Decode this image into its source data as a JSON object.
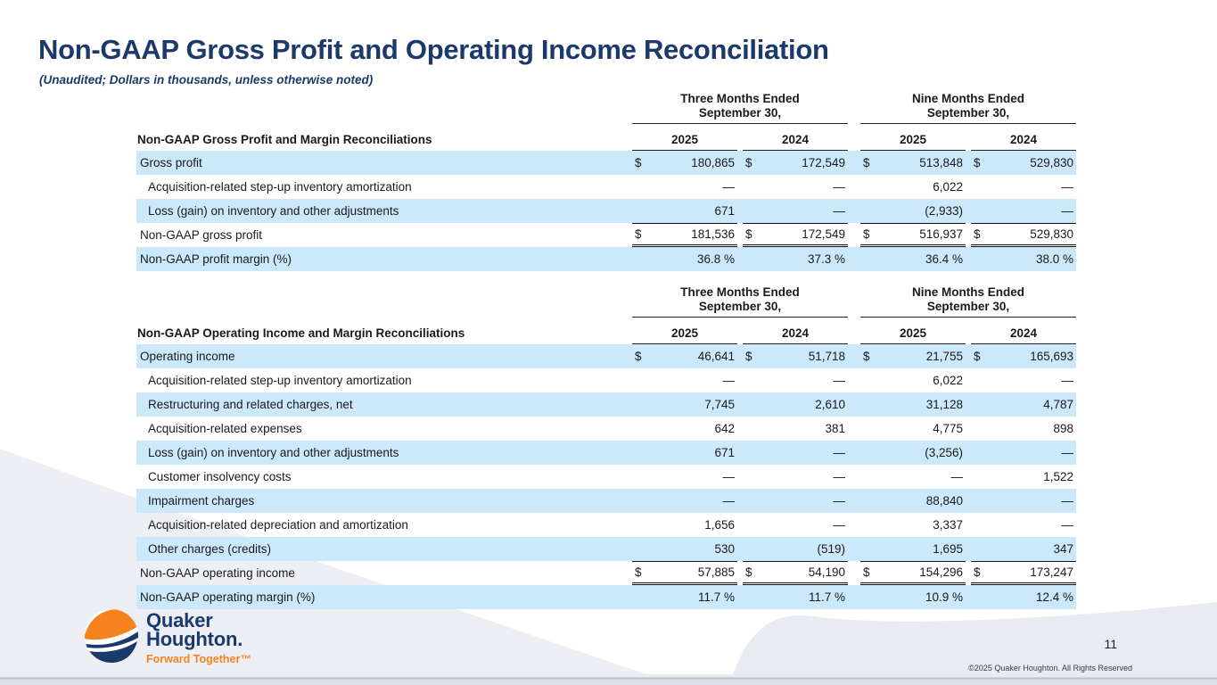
{
  "slide": {
    "title": "Non-GAAP Gross Profit and Operating Income Reconciliation",
    "subtitle": "(Unaudited; Dollars in thousands, unless otherwise noted)",
    "page_number": "11",
    "copyright": "©2025 Quaker Houghton. All Rights Reserved"
  },
  "logo": {
    "line1": "Quaker",
    "line2": "Houghton.",
    "tagline": "Forward Together™"
  },
  "colors": {
    "accent_navy": "#1b3a6b",
    "row_highlight": "#cce9fb",
    "logo_orange": "#f5821f",
    "logo_navy": "#1b3a6b",
    "wave_gray": "#e9ecf2"
  },
  "tables": [
    {
      "section_label": "Non-GAAP Gross Profit and Margin Reconciliations",
      "period_groups": [
        {
          "line1": "Three Months Ended",
          "line2": "September 30,"
        },
        {
          "line1": "Nine Months Ended",
          "line2": "September 30,"
        }
      ],
      "year_columns": [
        "2025",
        "2024",
        "2025",
        "2024"
      ],
      "rows": [
        {
          "label": "Gross profit",
          "indent": false,
          "shaded": true,
          "dollar": true,
          "style": "normal",
          "values": [
            "180,865",
            "172,549",
            "513,848",
            "529,830"
          ]
        },
        {
          "label": "Acquisition-related step-up inventory amortization",
          "indent": true,
          "shaded": false,
          "dollar": false,
          "style": "normal",
          "values": [
            "—",
            "—",
            "6,022",
            "—"
          ]
        },
        {
          "label": "Loss (gain) on inventory and other adjustments",
          "indent": true,
          "shaded": true,
          "dollar": false,
          "style": "normal",
          "values": [
            "671",
            "—",
            "(2,933)",
            "—"
          ]
        },
        {
          "label": "Non-GAAP gross profit",
          "indent": false,
          "shaded": false,
          "dollar": true,
          "style": "total",
          "values": [
            "181,536",
            "172,549",
            "516,937",
            "529,830"
          ]
        },
        {
          "label": "Non-GAAP profit margin (%)",
          "indent": false,
          "shaded": true,
          "dollar": false,
          "style": "percent",
          "values": [
            "36.8 %",
            "37.3 %",
            "36.4 %",
            "38.0 %"
          ]
        }
      ]
    },
    {
      "section_label": "Non-GAAP Operating Income and Margin Reconciliations",
      "period_groups": [
        {
          "line1": "Three Months Ended",
          "line2": "September 30,"
        },
        {
          "line1": "Nine Months Ended",
          "line2": "September 30,"
        }
      ],
      "year_columns": [
        "2025",
        "2024",
        "2025",
        "2024"
      ],
      "rows": [
        {
          "label": "Operating income",
          "indent": false,
          "shaded": true,
          "dollar": true,
          "style": "normal",
          "values": [
            "46,641",
            "51,718",
            "21,755",
            "165,693"
          ]
        },
        {
          "label": "Acquisition-related step-up inventory amortization",
          "indent": true,
          "shaded": false,
          "dollar": false,
          "style": "normal",
          "values": [
            "—",
            "—",
            "6,022",
            "—"
          ]
        },
        {
          "label": "Restructuring and related charges, net",
          "indent": true,
          "shaded": true,
          "dollar": false,
          "style": "normal",
          "values": [
            "7,745",
            "2,610",
            "31,128",
            "4,787"
          ]
        },
        {
          "label": "Acquisition-related expenses",
          "indent": true,
          "shaded": false,
          "dollar": false,
          "style": "normal",
          "values": [
            "642",
            "381",
            "4,775",
            "898"
          ]
        },
        {
          "label": "Loss (gain) on inventory and other adjustments",
          "indent": true,
          "shaded": true,
          "dollar": false,
          "style": "normal",
          "values": [
            "671",
            "—",
            "(3,256)",
            "—"
          ]
        },
        {
          "label": "Customer insolvency costs",
          "indent": true,
          "shaded": false,
          "dollar": false,
          "style": "normal",
          "values": [
            "—",
            "—",
            "—",
            "1,522"
          ]
        },
        {
          "label": "Impairment charges",
          "indent": true,
          "shaded": true,
          "dollar": false,
          "style": "normal",
          "values": [
            "—",
            "—",
            "88,840",
            "—"
          ]
        },
        {
          "label": "Acquisition-related depreciation and amortization",
          "indent": true,
          "shaded": false,
          "dollar": false,
          "style": "normal",
          "values": [
            "1,656",
            "—",
            "3,337",
            "—"
          ]
        },
        {
          "label": "Other charges (credits)",
          "indent": true,
          "shaded": true,
          "dollar": false,
          "style": "normal",
          "values": [
            "530",
            "(519)",
            "1,695",
            "347"
          ]
        },
        {
          "label": "Non-GAAP operating income",
          "indent": false,
          "shaded": false,
          "dollar": true,
          "style": "total",
          "values": [
            "57,885",
            "54,190",
            "154,296",
            "173,247"
          ]
        },
        {
          "label": "Non-GAAP operating margin (%)",
          "indent": false,
          "shaded": true,
          "dollar": false,
          "style": "percent",
          "values": [
            "11.7 %",
            "11.7 %",
            "10.9 %",
            "12.4 %"
          ]
        }
      ]
    }
  ]
}
